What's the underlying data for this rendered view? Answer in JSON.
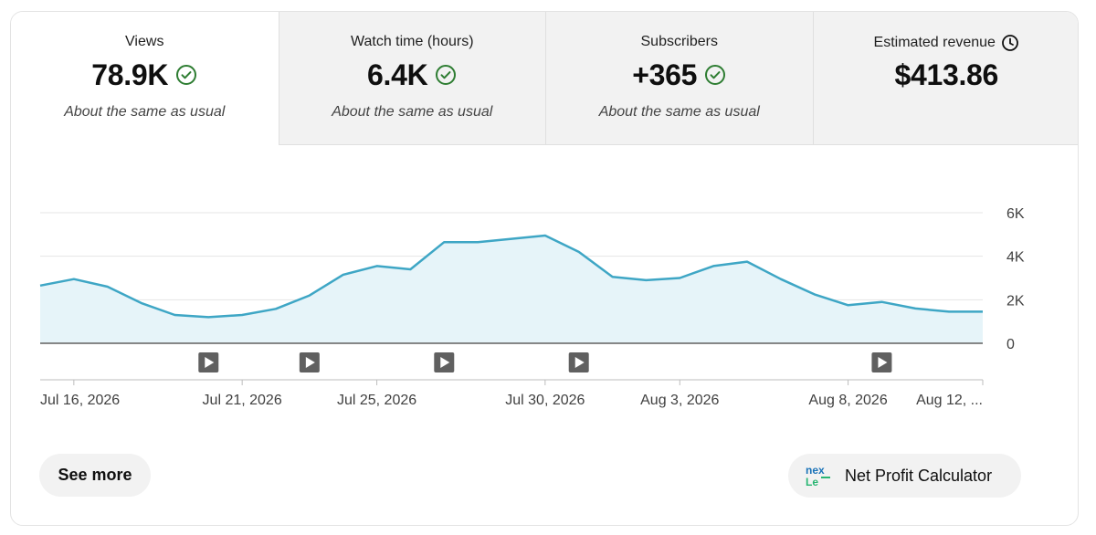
{
  "tabs": [
    {
      "title": "Views",
      "value": "78.9K",
      "subtitle": "About the same as usual",
      "status_icon": "check-circle-icon"
    },
    {
      "title": "Watch time (hours)",
      "value": "6.4K",
      "subtitle": "About the same as usual",
      "status_icon": "check-circle-icon"
    },
    {
      "title": "Subscribers",
      "value": "+365",
      "subtitle": "About the same as usual",
      "status_icon": "check-circle-icon"
    },
    {
      "title": "Estimated revenue",
      "value": "$413.86",
      "title_icon": "clock-icon"
    }
  ],
  "colors": {
    "line": "#3ea6c5",
    "fill": "#e6f4f9",
    "check": "#2e7d32",
    "grid": "#e5e5e5",
    "baseline": "#606060"
  },
  "chart_data": {
    "type": "area",
    "x": [
      "Jul 15",
      "Jul 16",
      "Jul 17",
      "Jul 18",
      "Jul 19",
      "Jul 20",
      "Jul 21",
      "Jul 22",
      "Jul 23",
      "Jul 24",
      "Jul 25",
      "Jul 26",
      "Jul 27",
      "Jul 28",
      "Jul 29",
      "Jul 30",
      "Jul 31",
      "Aug 1",
      "Aug 2",
      "Aug 3",
      "Aug 4",
      "Aug 5",
      "Aug 6",
      "Aug 7",
      "Aug 8",
      "Aug 9",
      "Aug 10",
      "Aug 11",
      "Aug 12"
    ],
    "series": [
      {
        "values": [
          2650,
          2950,
          2600,
          1850,
          1300,
          1200,
          1300,
          1580,
          2200,
          3150,
          3550,
          3400,
          4650,
          4650,
          4800,
          4950,
          4200,
          3050,
          2900,
          3000,
          3550,
          3750,
          2950,
          2250,
          1750,
          1900,
          1600,
          1450,
          1450
        ]
      }
    ],
    "xtick_labels": [
      "Jul 16, 2026",
      "Jul 21, 2026",
      "Jul 25, 2026",
      "Jul 30, 2026",
      "Aug 3, 2026",
      "Aug 8, 2026",
      "Aug 12, ..."
    ],
    "ytick_labels": [
      "6K",
      "4K",
      "2K",
      "0"
    ],
    "yticks": [
      6000,
      4000,
      2000,
      0
    ],
    "ylim": [
      0,
      6000
    ],
    "video_markers": [
      "Jul 20",
      "Jul 23",
      "Jul 27",
      "Jul 31",
      "Aug 9"
    ],
    "marker_icon": "play-icon",
    "grid": true
  },
  "buttons": {
    "see_more": "See more",
    "net_profit": "Net Profit Calculator",
    "net_profit_icon": "nex-logo-icon"
  }
}
